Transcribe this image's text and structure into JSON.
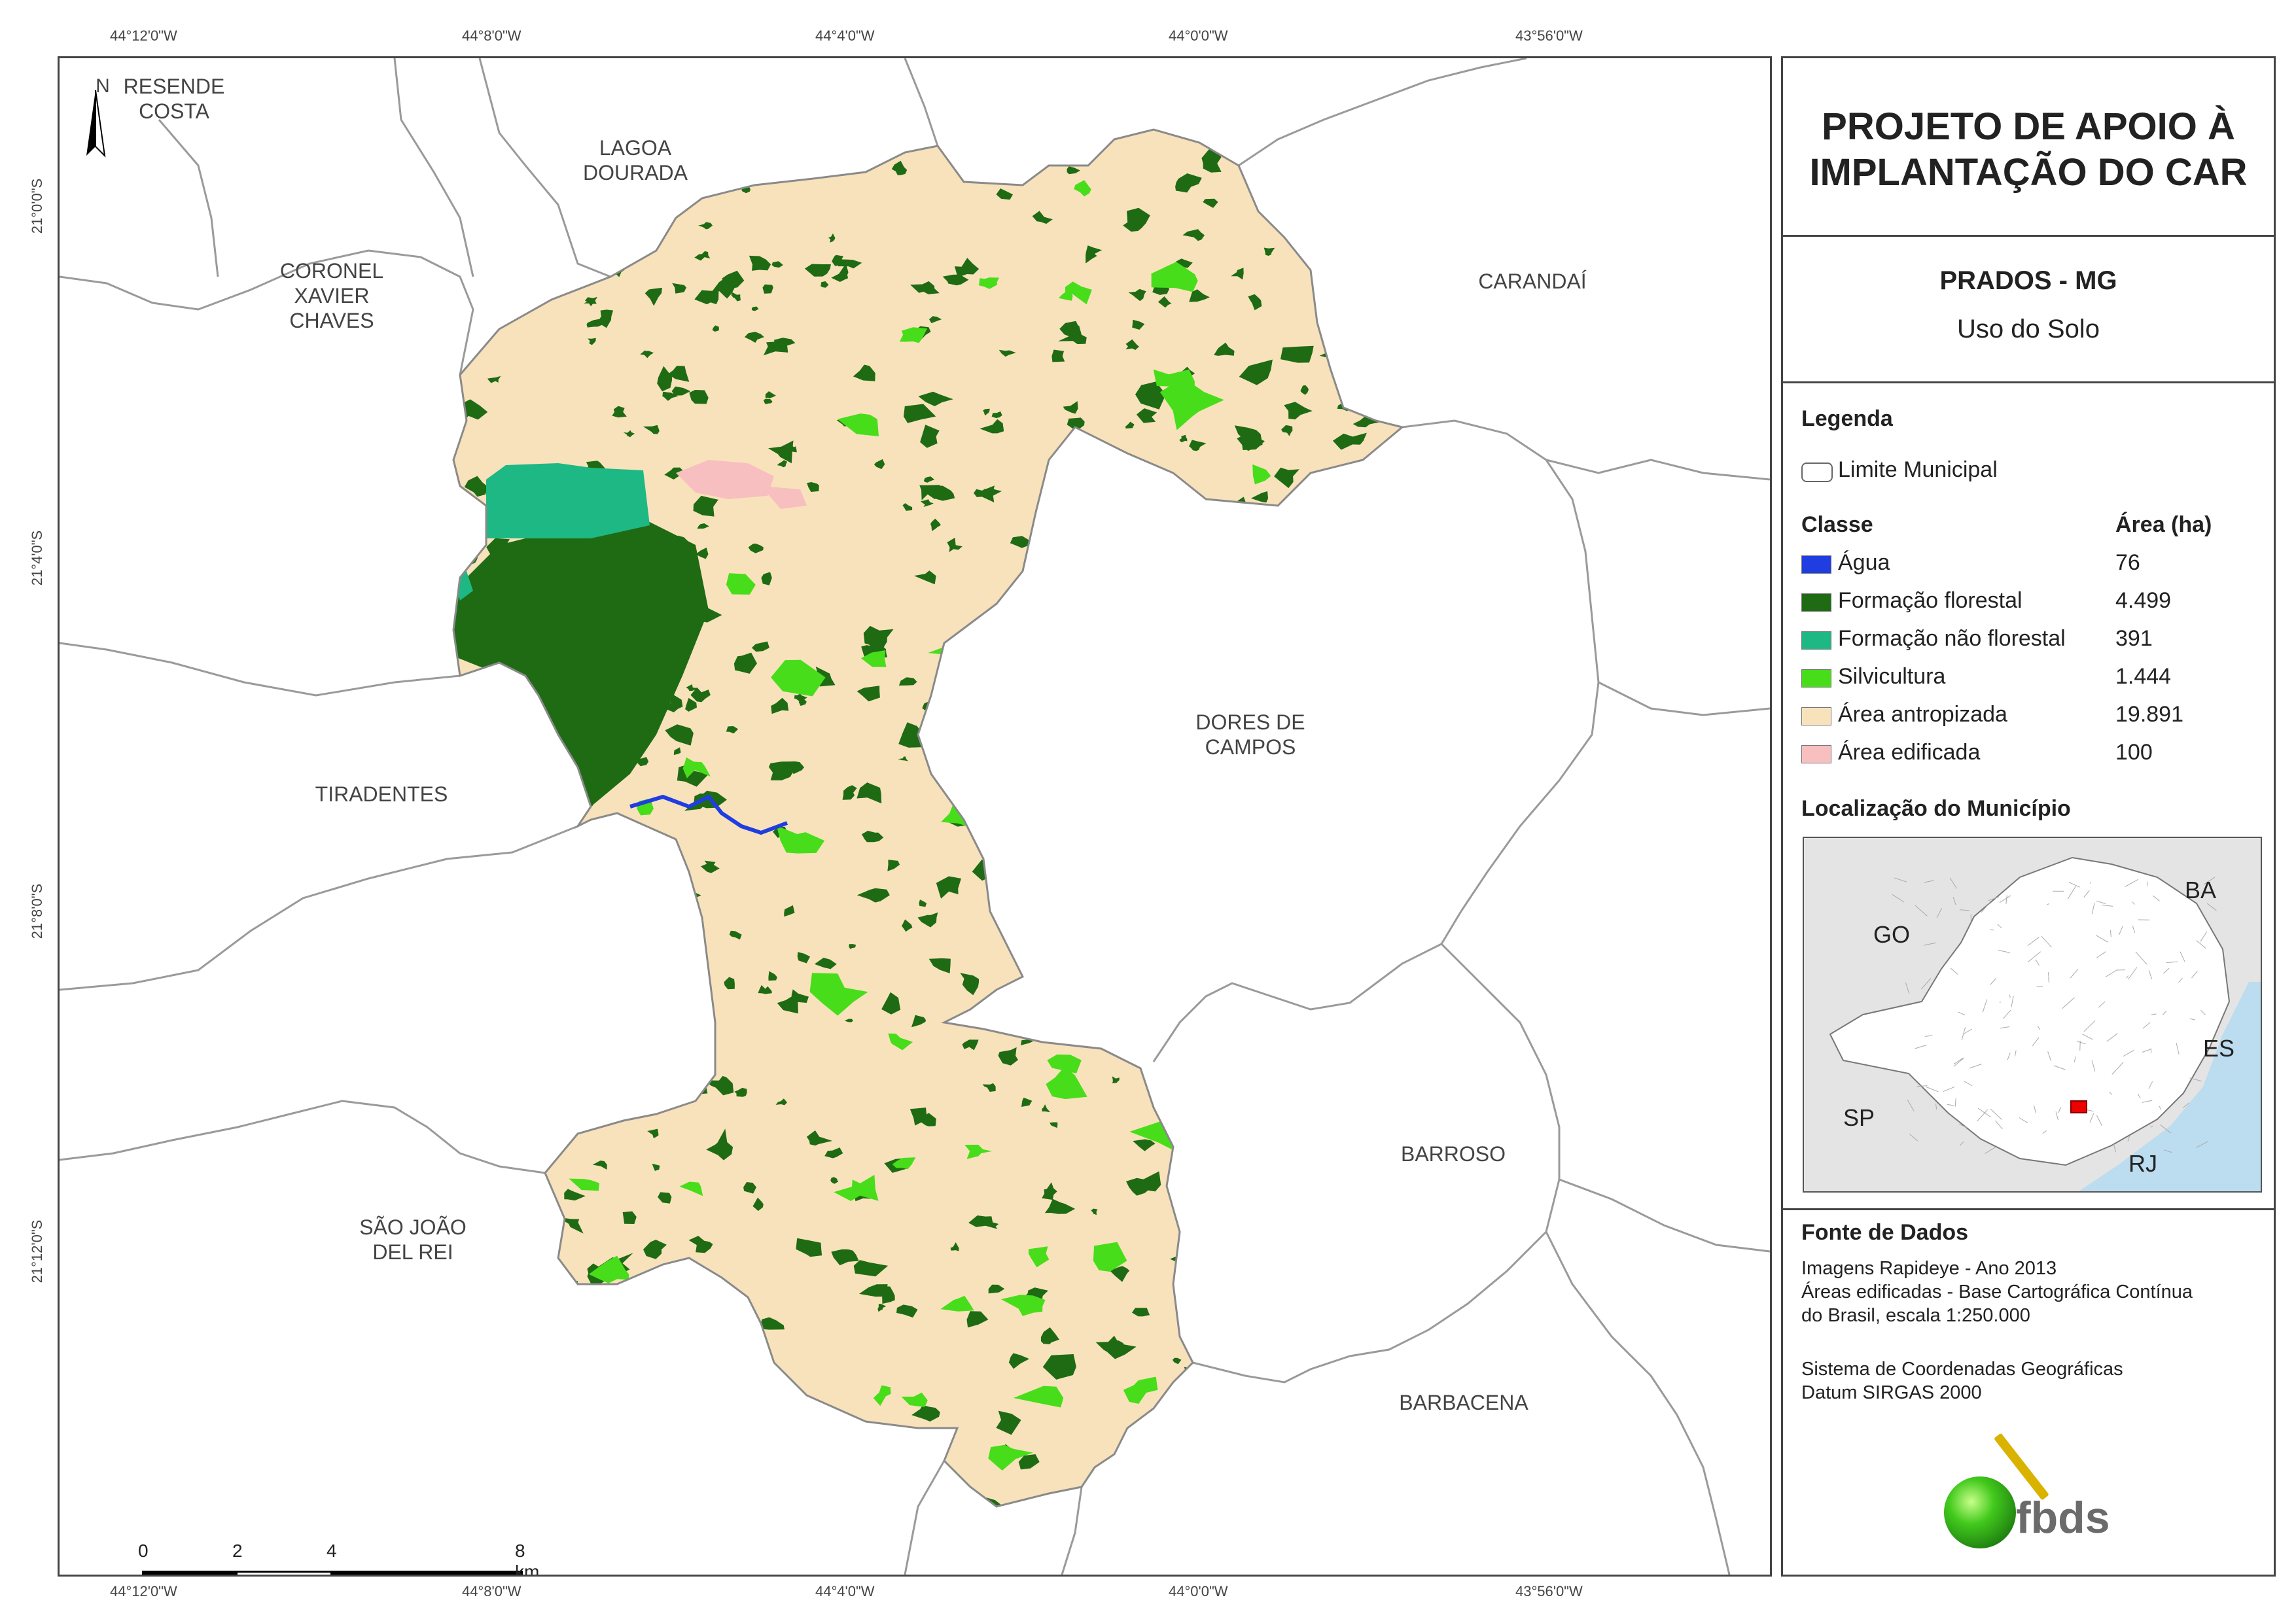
{
  "coords": {
    "top": [
      "44°12'0\"W",
      "44°8'0\"W",
      "44°4'0\"W",
      "44°0'0\"W",
      "43°56'0\"W"
    ],
    "bottom": [
      "44°12'0\"W",
      "44°8'0\"W",
      "44°4'0\"W",
      "44°0'0\"W",
      "43°56'0\"W"
    ],
    "left": [
      "21°0'0\"S",
      "21°4'0\"S",
      "21°8'0\"S",
      "21°12'0\"S"
    ]
  },
  "map": {
    "north_label": "N",
    "places": {
      "resende_costa": "RESENDE\nCOSTA",
      "lagoa_dourada": "LAGOA\nDOURADA",
      "coronel_xavier_chaves": "CORONEL\nXAVIER\nCHAVES",
      "carandai": "CARANDAÍ",
      "tiradentes": "TIRADENTES",
      "dores_de_campos": "DORES DE\nCAMPOS",
      "barroso": "BARROSO",
      "sao_joao_del_rei": "SÃO JOÃO\nDEL REI",
      "barbacena": "BARBACENA"
    },
    "scale": {
      "labels": [
        "0",
        "2",
        "4",
        "8 km"
      ]
    }
  },
  "panel": {
    "title": "PROJETO DE APOIO À\nIMPLANTAÇÃO DO CAR",
    "subtitle": "PRADOS - MG",
    "theme": "Uso do Solo",
    "legend_heading": "Legenda",
    "boundary_label": "Limite Municipal",
    "class_heading": "Classe",
    "area_heading": "Área (ha)",
    "classes": [
      {
        "label": "Água",
        "area": "76",
        "color": "#1f3de0"
      },
      {
        "label": "Formação florestal",
        "area": "4.499",
        "color": "#1e6b14"
      },
      {
        "label": "Formação não florestal",
        "area": "391",
        "color": "#1db884"
      },
      {
        "label": "Silvicultura",
        "area": "1.444",
        "color": "#47dd1a"
      },
      {
        "label": "Área antropizada",
        "area": "19.891",
        "color": "#f8e2bb"
      },
      {
        "label": "Área edificada",
        "area": "100",
        "color": "#f8bfc0"
      }
    ],
    "location_heading": "Localização do Município",
    "inset_states": [
      "GO",
      "BA",
      "ES",
      "SP",
      "RJ"
    ],
    "source_heading": "Fonte de Dados",
    "source_lines": [
      "Imagens Rapideye - Ano 2013",
      "Áreas edificadas - Base Cartográfica Contínua",
      "do Brasil, escala 1:250.000"
    ],
    "crs_lines": [
      "Sistema de Coordenadas Geográficas",
      "Datum SIRGAS 2000"
    ],
    "logo_text": "fbds"
  }
}
